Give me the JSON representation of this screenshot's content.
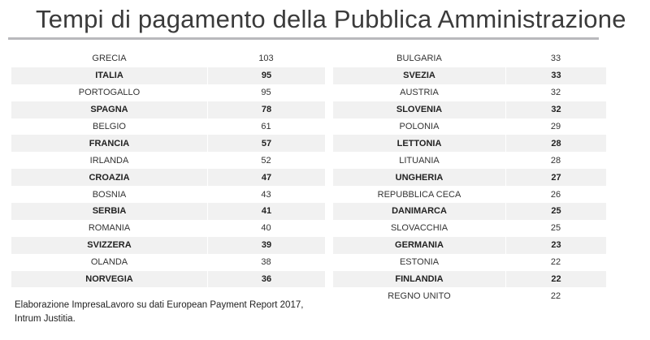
{
  "title": "Tempi di pagamento della Pubblica Amministrazione",
  "caption": {
    "line1": "Elaborazione ImpresaLavoro  su dati European Payment Report 2017,",
    "line2": "Intrum Justitia."
  },
  "colors": {
    "row_shade": "#f1f1f1",
    "rule": "#b9b9bd",
    "title": "#3b3b3b"
  },
  "chart_data": {
    "type": "table",
    "title": "Tempi di pagamento della Pubblica Amministrazione",
    "columns": [
      {
        "rows": [
          {
            "country": "GRECIA",
            "value": 103
          },
          {
            "country": "ITALIA",
            "value": 95
          },
          {
            "country": "PORTOGALLO",
            "value": 95
          },
          {
            "country": "SPAGNA",
            "value": 78
          },
          {
            "country": "BELGIO",
            "value": 61
          },
          {
            "country": "FRANCIA",
            "value": 57
          },
          {
            "country": "IRLANDA",
            "value": 52
          },
          {
            "country": "CROAZIA",
            "value": 47
          },
          {
            "country": "BOSNIA",
            "value": 43
          },
          {
            "country": "SERBIA",
            "value": 41
          },
          {
            "country": "ROMANIA",
            "value": 40
          },
          {
            "country": "SVIZZERA",
            "value": 39
          },
          {
            "country": "OLANDA",
            "value": 38
          },
          {
            "country": "NORVEGIA",
            "value": 36
          }
        ]
      },
      {
        "rows": [
          {
            "country": "BULGARIA",
            "value": 33
          },
          {
            "country": "SVEZIA",
            "value": 33
          },
          {
            "country": "AUSTRIA",
            "value": 32
          },
          {
            "country": "SLOVENIA",
            "value": 32
          },
          {
            "country": "POLONIA",
            "value": 29
          },
          {
            "country": "LETTONIA",
            "value": 28
          },
          {
            "country": "LITUANIA",
            "value": 28
          },
          {
            "country": "UNGHERIA",
            "value": 27
          },
          {
            "country": "REPUBBLICA CECA",
            "value": 26
          },
          {
            "country": "DANIMARCA",
            "value": 25
          },
          {
            "country": "SLOVACCHIA",
            "value": 25
          },
          {
            "country": "GERMANIA",
            "value": 23
          },
          {
            "country": "ESTONIA",
            "value": 22
          },
          {
            "country": "FINLANDIA",
            "value": 22
          },
          {
            "country": "REGNO UNITO",
            "value": 22
          }
        ]
      }
    ]
  }
}
